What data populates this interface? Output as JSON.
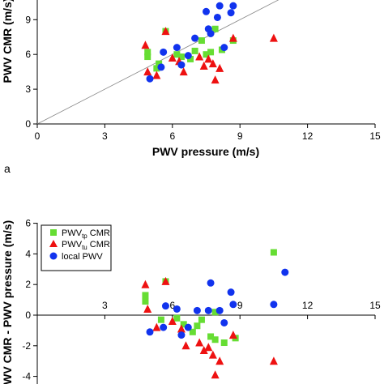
{
  "figure": {
    "panel_a_label": "a"
  },
  "chart_data": [
    {
      "type": "scatter",
      "title": "",
      "xlabel": "PWV pressure (m/s)",
      "ylabel": "PWV CMR (m/s)",
      "xlim": [
        0,
        15
      ],
      "ylim": [
        0,
        10.5
      ],
      "x_ticks": [
        0,
        3,
        6,
        9,
        12,
        15
      ],
      "y_ticks": [
        0,
        3,
        6,
        9
      ],
      "x_tick_labels": [
        "0",
        "3",
        "6",
        "9",
        "12",
        "15"
      ],
      "y_tick_labels": [
        "0",
        "3",
        "6",
        "9"
      ],
      "identity_line": {
        "from": [
          0,
          0
        ],
        "to": [
          15,
          15
        ]
      },
      "grid": false,
      "series": [
        {
          "key": "pwv_tp",
          "marker": "square",
          "color": "#66dd33",
          "points": [
            [
              4.9,
              6.2
            ],
            [
              4.9,
              5.8
            ],
            [
              5.3,
              4.8
            ],
            [
              5.7,
              8.0
            ],
            [
              6.2,
              6.0
            ],
            [
              6.4,
              5.8
            ],
            [
              6.8,
              5.6
            ],
            [
              7.0,
              6.3
            ],
            [
              7.3,
              7.2
            ],
            [
              7.7,
              6.2
            ],
            [
              7.5,
              6.0
            ],
            [
              7.9,
              8.2
            ],
            [
              8.2,
              6.4
            ],
            [
              8.7,
              7.2
            ],
            [
              5.4,
              5.2
            ]
          ]
        },
        {
          "key": "pwv_tu",
          "marker": "triangle",
          "color": "#ee1111",
          "points": [
            [
              4.8,
              6.8
            ],
            [
              4.9,
              4.5
            ],
            [
              5.3,
              4.2
            ],
            [
              5.7,
              8.0
            ],
            [
              6.0,
              5.7
            ],
            [
              6.5,
              4.5
            ],
            [
              7.2,
              5.8
            ],
            [
              7.4,
              5.0
            ],
            [
              7.6,
              5.6
            ],
            [
              7.8,
              5.2
            ],
            [
              7.9,
              3.8
            ],
            [
              8.1,
              4.8
            ],
            [
              8.7,
              7.4
            ],
            [
              10.5,
              7.4
            ],
            [
              6.3,
              5.4
            ]
          ]
        },
        {
          "key": "local",
          "marker": "circle",
          "color": "#1133ee",
          "points": [
            [
              5.0,
              3.9
            ],
            [
              5.5,
              4.9
            ],
            [
              5.6,
              6.2
            ],
            [
              6.2,
              6.6
            ],
            [
              6.7,
              5.9
            ],
            [
              6.4,
              5.1
            ],
            [
              7.0,
              7.4
            ],
            [
              7.7,
              7.8
            ],
            [
              7.6,
              8.2
            ],
            [
              7.5,
              9.7
            ],
            [
              8.0,
              9.2
            ],
            [
              8.1,
              10.2
            ],
            [
              8.6,
              9.6
            ],
            [
              8.7,
              10.2
            ],
            [
              8.3,
              6.6
            ]
          ]
        }
      ]
    },
    {
      "type": "scatter",
      "title": "",
      "xlabel": "",
      "ylabel": "PWV CMR - PWV pressure (m/s)",
      "xlim": [
        0,
        15
      ],
      "ylim": [
        -4.5,
        6
      ],
      "x_ticks": [
        3,
        6,
        9,
        12,
        15
      ],
      "y_ticks": [
        -4,
        -2,
        0,
        2,
        4,
        6
      ],
      "x_tick_labels": [
        "3",
        "6",
        "9",
        "12",
        "15"
      ],
      "y_tick_labels": [
        "-4",
        "-2",
        "0",
        "2",
        "4",
        "6"
      ],
      "grid": false,
      "legend": {
        "position": "top-left",
        "entries": [
          {
            "key": "pwv_tp",
            "label": "PWV",
            "sub": "tp",
            "suffix": " CMR"
          },
          {
            "key": "pwv_tu",
            "label": "PWV",
            "sub": "tu",
            "suffix": " CMR"
          },
          {
            "key": "local",
            "label": "local PWV",
            "sub": "",
            "suffix": ""
          }
        ]
      },
      "series": [
        {
          "key": "pwv_tp",
          "marker": "square",
          "color": "#66dd33",
          "points": [
            [
              4.8,
              1.3
            ],
            [
              4.8,
              0.9
            ],
            [
              5.5,
              -0.3
            ],
            [
              5.7,
              2.2
            ],
            [
              6.2,
              -0.2
            ],
            [
              6.5,
              -0.6
            ],
            [
              6.9,
              -1.1
            ],
            [
              7.1,
              -0.7
            ],
            [
              7.3,
              -0.3
            ],
            [
              7.7,
              -1.4
            ],
            [
              7.9,
              -1.6
            ],
            [
              7.9,
              0.2
            ],
            [
              8.3,
              -1.8
            ],
            [
              8.8,
              -1.5
            ],
            [
              10.5,
              4.1
            ]
          ]
        },
        {
          "key": "pwv_tu",
          "marker": "triangle",
          "color": "#ee1111",
          "points": [
            [
              4.8,
              2.0
            ],
            [
              4.9,
              0.4
            ],
            [
              5.3,
              -0.8
            ],
            [
              5.7,
              2.2
            ],
            [
              6.0,
              -0.4
            ],
            [
              6.6,
              -2.0
            ],
            [
              7.2,
              -1.8
            ],
            [
              7.4,
              -2.3
            ],
            [
              7.6,
              -2.1
            ],
            [
              7.8,
              -2.6
            ],
            [
              7.9,
              -3.9
            ],
            [
              8.1,
              -3.0
            ],
            [
              8.7,
              -1.3
            ],
            [
              10.5,
              -3.0
            ],
            [
              6.4,
              -0.9
            ]
          ]
        },
        {
          "key": "local",
          "marker": "circle",
          "color": "#1133ee",
          "points": [
            [
              5.0,
              -1.1
            ],
            [
              5.6,
              -0.8
            ],
            [
              5.7,
              0.6
            ],
            [
              6.2,
              0.4
            ],
            [
              6.7,
              -0.8
            ],
            [
              6.4,
              -1.3
            ],
            [
              7.1,
              0.3
            ],
            [
              7.7,
              2.1
            ],
            [
              7.6,
              0.3
            ],
            [
              8.1,
              0.3
            ],
            [
              8.6,
              1.5
            ],
            [
              8.7,
              0.7
            ],
            [
              8.3,
              -0.5
            ],
            [
              11.0,
              2.8
            ],
            [
              10.5,
              0.7
            ]
          ]
        }
      ]
    }
  ]
}
